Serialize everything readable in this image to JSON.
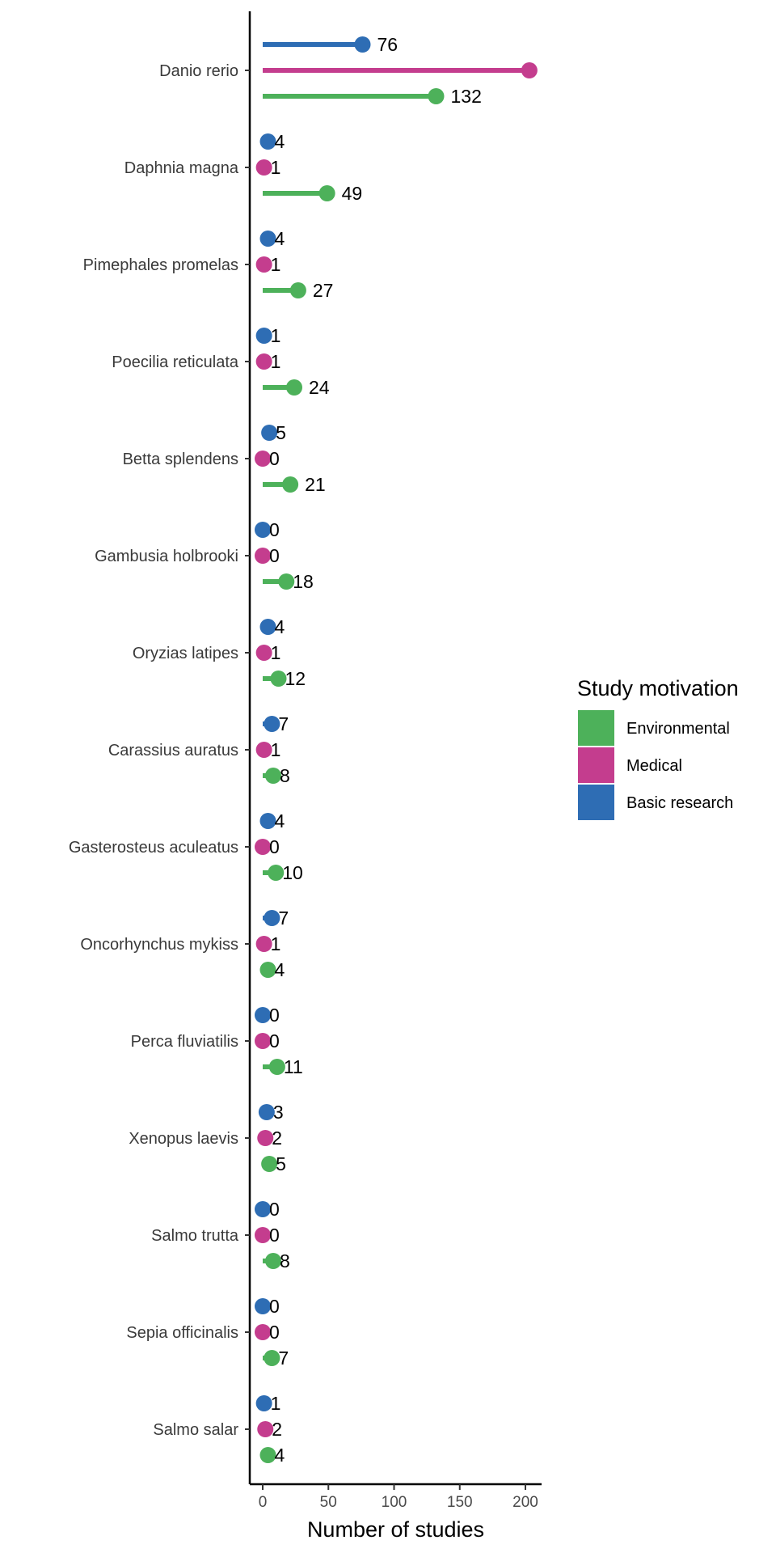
{
  "chart_data": {
    "type": "lollipop",
    "orientation": "horizontal",
    "xlabel": "Number of studies",
    "xlim": [
      -10,
      212
    ],
    "x_ticks": [
      0,
      50,
      100,
      150,
      200
    ],
    "grid": false,
    "legend_position": "right",
    "legend_title": "Study motivation",
    "legend_entries": [
      "Environmental",
      "Medical",
      "Basic research"
    ],
    "categories": [
      "Danio rerio",
      "Daphnia magna",
      "Pimephales promelas",
      "Poecilia reticulata",
      "Betta splendens",
      "Gambusia holbrooki",
      "Oryzias latipes",
      "Carassius auratus",
      "Gasterosteus aculeatus",
      "Oncorhynchus mykiss",
      "Perca fluviatilis",
      "Xenopus laevis",
      "Salmo trutta",
      "Sepia officinalis",
      "Salmo salar"
    ],
    "series": [
      {
        "name": "Basic research",
        "color": "#2E6DB4",
        "values": [
          76,
          4,
          4,
          1,
          5,
          0,
          4,
          7,
          4,
          7,
          0,
          3,
          0,
          0,
          1
        ],
        "labels": [
          "76",
          "4",
          "4",
          "1",
          "5",
          "0",
          "4",
          "7",
          "4",
          "7",
          "0",
          "3",
          "0",
          "0",
          "1"
        ]
      },
      {
        "name": "Medical",
        "color": "#C43D8E",
        "values": [
          203,
          1,
          1,
          1,
          0,
          0,
          1,
          1,
          0,
          1,
          0,
          2,
          0,
          0,
          2
        ],
        "labels": [
          "",
          "1",
          "1",
          "1",
          "0",
          "0",
          "1",
          "1",
          "0",
          "1",
          "0",
          "2",
          "0",
          "0",
          "2"
        ]
      },
      {
        "name": "Environmental",
        "color": "#4DB15A",
        "values": [
          132,
          49,
          27,
          24,
          21,
          18,
          12,
          8,
          10,
          4,
          11,
          5,
          8,
          7,
          4
        ],
        "labels": [
          "132",
          "49",
          "27",
          "24",
          "21",
          "18",
          "12",
          "8",
          "10",
          "4",
          "11",
          "5",
          "8",
          "7",
          "4"
        ]
      }
    ]
  }
}
